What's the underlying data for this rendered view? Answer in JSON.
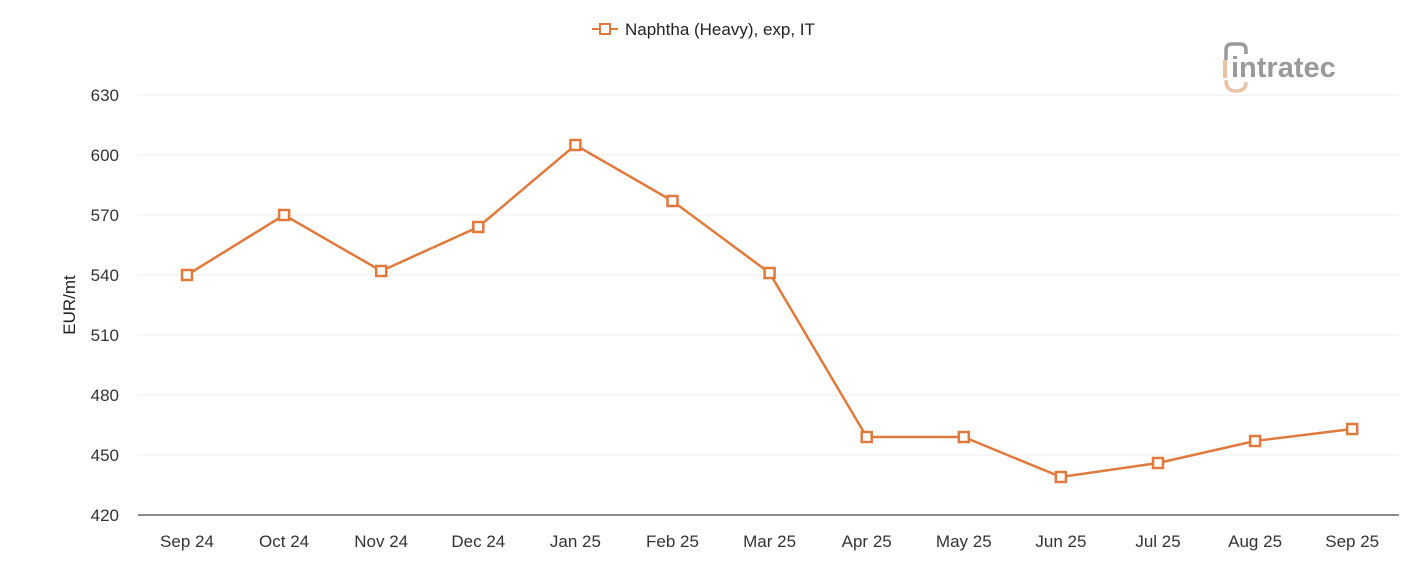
{
  "chart_data": {
    "type": "line",
    "title": "",
    "xlabel": "",
    "ylabel": "EUR/mt",
    "ylim": [
      420,
      630
    ],
    "yticks": [
      420,
      450,
      480,
      510,
      540,
      570,
      600,
      630
    ],
    "grid": true,
    "legend_position": "top-center",
    "categories": [
      "Sep 24",
      "Oct 24",
      "Nov 24",
      "Dec 24",
      "Jan 25",
      "Feb 25",
      "Mar 25",
      "Apr 25",
      "May 25",
      "Jun 25",
      "Jul 25",
      "Aug 25",
      "Sep 25"
    ],
    "series": [
      {
        "name": "Naphtha (Heavy), exp, IT",
        "color": "#e07a3c",
        "marker": "hollow-square",
        "values": [
          540,
          570,
          542,
          564,
          605,
          577,
          541,
          459,
          459,
          439,
          446,
          457,
          463
        ]
      }
    ]
  },
  "legend": {
    "label": "Naphtha (Heavy), exp, IT"
  },
  "watermark": {
    "text": "intratec",
    "main_color": "#9a9a9a",
    "accent_color": "#e9c3a4"
  }
}
